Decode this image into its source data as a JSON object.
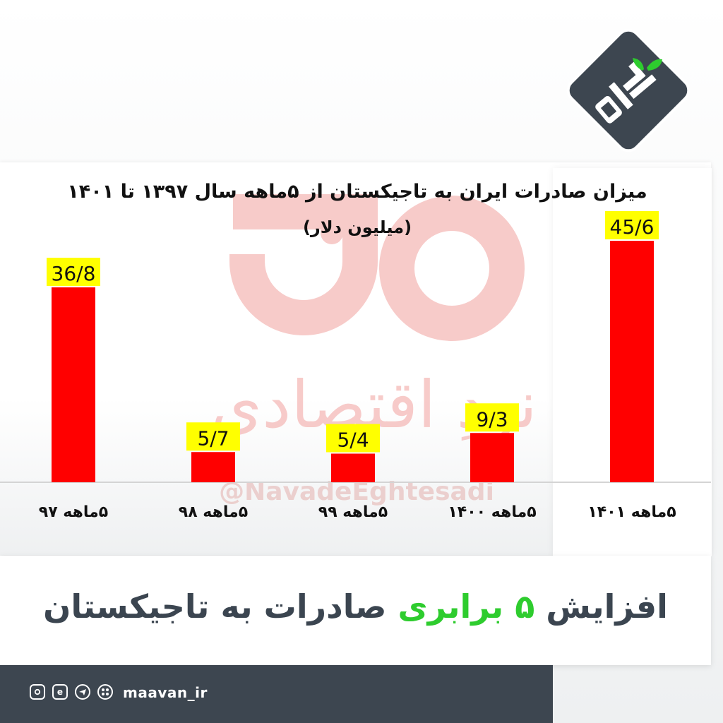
{
  "chart_data": {
    "type": "bar",
    "title": "میزان صادرات ایران به تاجیکستان از ۵ماهه سال ۱۳۹۷ تا ۱۴۰۱",
    "subtitle": "(میلیون دلار)",
    "categories": [
      "۵ماهه ۹۷",
      "۵ماهه ۹۸",
      "۵ماهه ۹۹",
      "۵ماهه ۱۴۰۰",
      "۵ماهه ۱۴۰۱"
    ],
    "values": [
      36.8,
      5.7,
      5.4,
      9.3,
      45.6
    ],
    "value_labels": [
      "36/8",
      "5/7",
      "5/4",
      "9/3",
      "45/6"
    ],
    "bar_color": "#ff0000",
    "label_bg": "#ffff00",
    "ylim": [
      0,
      50
    ],
    "grid": false,
    "legend": "none"
  },
  "watermark": {
    "logo_word": "نو",
    "subtitle": "نودِ اقتصادی",
    "handle": "@NavadeEghtesadi",
    "color": "#f6c2c0"
  },
  "headline": {
    "part1": "افزایش",
    "accent": "۵ برابری",
    "part2": "صادرات به تاجیکستان",
    "accent_color": "#2ecc2e",
    "text_color": "#3b4550"
  },
  "footer": {
    "handle": "maavan_ir",
    "icons": [
      "instagram-icon",
      "eitaa-icon",
      "telegram-icon",
      "aparat-icon"
    ],
    "bg_color": "#3d4650"
  },
  "brand": {
    "logo_text": "ماوان",
    "logo_bg": "#3d4650",
    "leaf_color": "#2ecc2e"
  }
}
